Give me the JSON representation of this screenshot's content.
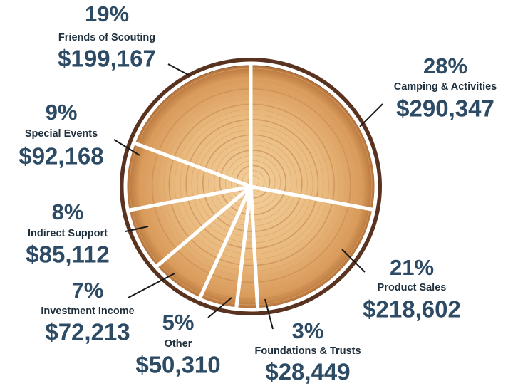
{
  "chart_data": {
    "type": "pie",
    "categories": [
      "Camping & Activities",
      "Product Sales",
      "Foundations & Trusts",
      "Other",
      "Investment Income",
      "Indirect Support",
      "Special Events",
      "Friends of Scouting"
    ],
    "values": [
      290347,
      218602,
      28449,
      50310,
      72213,
      85112,
      92168,
      199167
    ],
    "value_labels": [
      "$290,347",
      "$218,602",
      "$28,449",
      "$50,310",
      "$72,213",
      "$85,112",
      "$92,168",
      "$199,167"
    ],
    "percents": [
      28,
      21,
      3,
      5,
      7,
      8,
      9,
      19
    ],
    "percent_labels": [
      "28%",
      "21%",
      "3%",
      "5%",
      "7%",
      "8%",
      "9%",
      "19%"
    ],
    "color": "#ffffff"
  }
}
